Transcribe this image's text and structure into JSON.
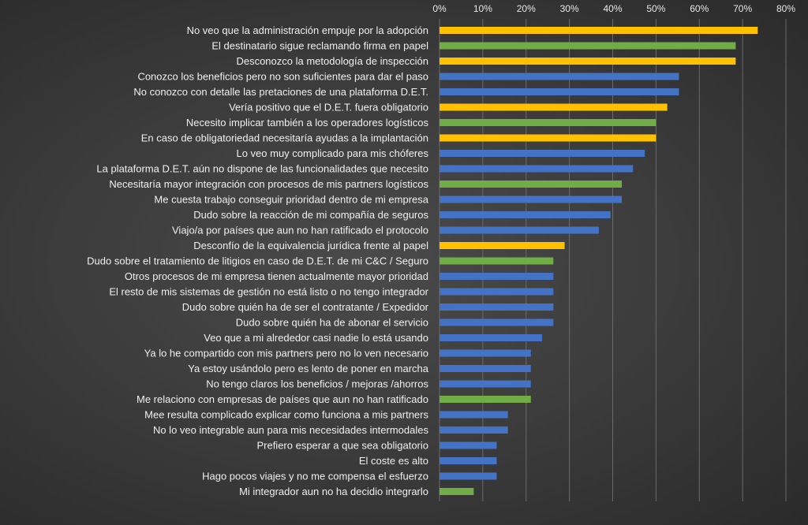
{
  "chart_data": {
    "type": "bar",
    "orientation": "horizontal",
    "xlim": [
      0,
      0.8
    ],
    "x_ticks": [
      "0%",
      "10%",
      "20%",
      "30%",
      "40%",
      "50%",
      "60%",
      "70%",
      "80%"
    ],
    "x_tick_values": [
      0,
      0.1,
      0.2,
      0.3,
      0.4,
      0.5,
      0.6,
      0.7,
      0.8
    ],
    "x_axis_position": "top",
    "grid": true,
    "legend": "none",
    "colors": {
      "blue": "#4472c4",
      "green": "#70ad47",
      "yellow": "#ffc000"
    },
    "categories": [
      "No veo que la administración empuje por la adopción",
      "El destinatario sigue reclamando firma en papel",
      "Desconozco la metodología de inspección",
      "Conozco los beneficios pero no son suficientes para dar el paso",
      "No conozco con detalle las pretaciones de una plataforma D.E.T.",
      "Vería positivo que el D.E.T. fuera obligatorio",
      "Necesito implicar también a los operadores logísticos",
      "En caso de obligatoriedad necesitaría ayudas a la implantación",
      "Lo veo muy complicado para mis chóferes",
      "La plataforma D.E.T. aún no dispone de las funcionalidades que necesito",
      "Necesitaría mayor integración con procesos de mis partners logísticos",
      "Me cuesta trabajo conseguir prioridad dentro de mi empresa",
      "Dudo sobre la reacción de mi compañía de seguros",
      "Viajo/a por países que aun no han ratificado el protocolo",
      "Desconfío de la equivalencia jurídica frente al papel",
      "Dudo sobre el tratamiento de litigios en caso de D.E.T. de mi C&C / Seguro",
      "Otros procesos de mi empresa tienen actualmente mayor prioridad",
      "El resto de mis sistemas de gestión no está listo o no tengo integrador",
      "Dudo sobre quién ha de ser el contratante / Expedidor",
      "Dudo sobre quién ha de abonar el servicio",
      "Veo que a mi alrededor casi nadie lo está usando",
      "Ya lo he compartido con mis partners  pero no lo ven necesario",
      "Ya estoy usándolo pero es lento de poner en marcha",
      "No tengo claros los beneficios / mejoras /ahorros",
      "Me relaciono con empresas de países que aun no han ratificado",
      "Mee resulta complicado explicar como funciona a mis partners",
      "No lo veo integrable aun para mis necesidades intermodales",
      "Prefiero esperar a que sea obligatorio",
      "El coste es alto",
      "Hago pocos viajes y no me compensa el esfuerzo",
      "Mi integrador aun no ha decidio integrarlo"
    ],
    "values": [
      0.735,
      0.684,
      0.684,
      0.553,
      0.553,
      0.526,
      0.5,
      0.5,
      0.474,
      0.447,
      0.421,
      0.421,
      0.395,
      0.368,
      0.289,
      0.263,
      0.263,
      0.263,
      0.263,
      0.263,
      0.237,
      0.211,
      0.211,
      0.211,
      0.211,
      0.158,
      0.158,
      0.132,
      0.132,
      0.132,
      0.079
    ],
    "bar_colors": [
      "yellow",
      "green",
      "yellow",
      "blue",
      "blue",
      "yellow",
      "green",
      "yellow",
      "blue",
      "blue",
      "green",
      "blue",
      "blue",
      "blue",
      "yellow",
      "green",
      "blue",
      "blue",
      "blue",
      "blue",
      "blue",
      "blue",
      "blue",
      "blue",
      "green",
      "blue",
      "blue",
      "blue",
      "blue",
      "blue",
      "green"
    ]
  }
}
